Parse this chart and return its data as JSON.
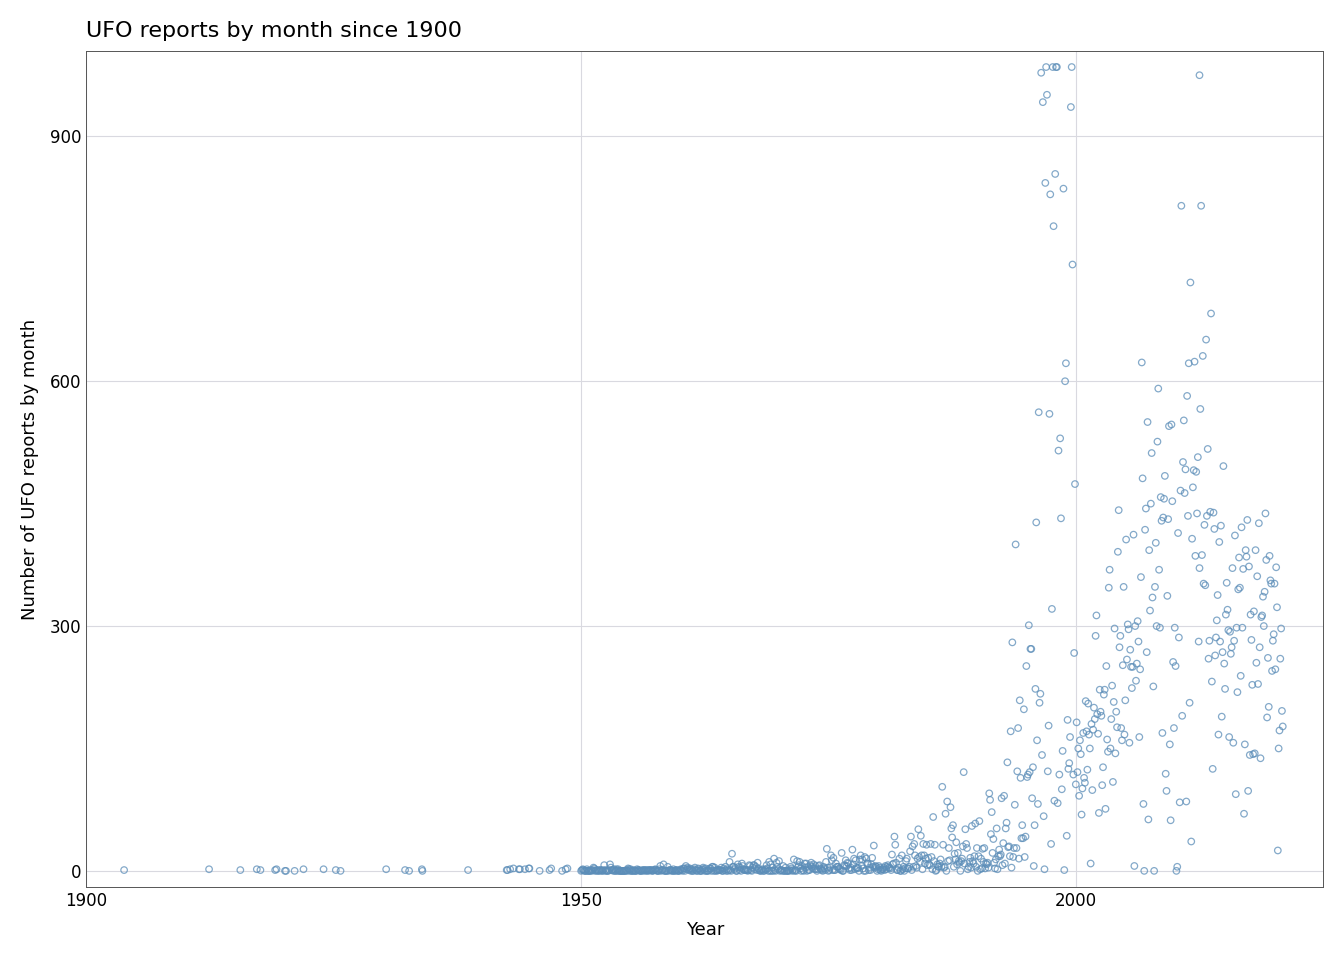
{
  "title": "UFO reports by month since 1900",
  "xlabel": "Year",
  "ylabel": "Number of UFO reports by month",
  "xlim": [
    1900,
    2025
  ],
  "ylim": [
    -20,
    1005
  ],
  "xticks": [
    1900,
    1950,
    2000
  ],
  "yticks": [
    0,
    300,
    600,
    900
  ],
  "point_color": "#5b8db8",
  "background_color": "#ffffff",
  "panel_color": "#ffffff",
  "grid_color": "#d9d9e0",
  "title_fontsize": 16,
  "axis_fontsize": 13,
  "tick_fontsize": 12,
  "seed": 99
}
